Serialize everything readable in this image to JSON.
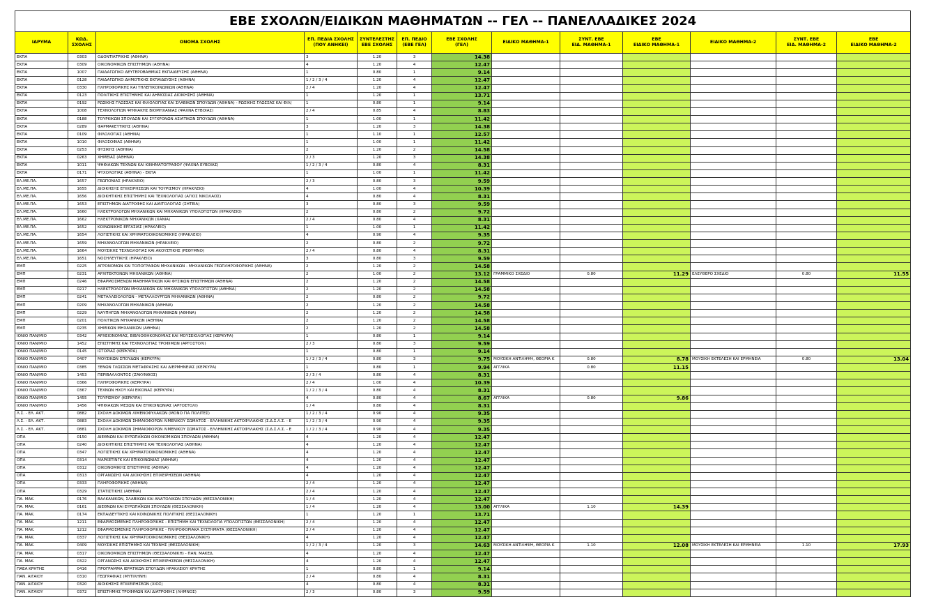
{
  "title": "ΕΒΕ ΣΧΟΛΩΝ/ΕΙΔΙΚΩΝ ΜΑΘΗΜΑΤΩΝ -- ΓΕΛ -- ΠΑΝΕΛΛΑΔΙΚΕΣ 2024",
  "table": {
    "columns": [
      "ΙΔΡΥΜΑ",
      "ΚΩΔ.\nΣΧΟΛΗΣ",
      "ΟΝΟΜΑ ΣΧΟΛΗΣ",
      "ΕΠ. ΠΕΔΙΑ ΣΧΟΛΗΣ\n(ΠΟΥ ΑΝΗΚΕΙ)",
      "ΣΥΝΤΕΛΕΣΤΗΣ\nΕΒΕ ΣΧΟΛΗΣ",
      "ΕΠ. ΠΕΔΙΟ\n(ΕΒΕ ΓΕΛ)",
      "ΕΒΕ ΣΧΟΛΗΣ\n(ΓΕΛ)",
      "ΕΙΔΙΚΟ ΜΑΘΗΜΑ-1",
      "ΣΥΝΤ. ΕΒΕ\nΕΙΔ. ΜΑΘΗΜΑ-1",
      "ΕΒΕ\nΕΙΔΙΚΟ ΜΑΘΗΜΑ-1",
      "ΕΙΔΙΚΟ ΜΑΘΗΜΑ-2",
      "ΣΥΝΤ. ΕΒΕ\nΕΙΔ. ΜΑΘΗΜΑ-2",
      "ΕΒΕ\nΕΙΔΙΚΟ ΜΑΘΗΜΑ-2"
    ],
    "rows": [
      [
        "ΕΚΠΑ",
        "0303",
        "ΟΔΟΝΤΙΑΤΡΙΚΗΣ (ΑΘΗΝΑ)",
        "3",
        "1.20",
        "3",
        "14.38",
        null,
        null,
        null,
        null,
        null,
        null
      ],
      [
        "ΕΚΠΑ",
        "0309",
        "ΟΙΚΟΝΟΜΙΚΩΝ ΕΠΙΣΤΗΜΩΝ (ΑΘΗΝΑ)",
        "4",
        "1.20",
        "4",
        "12.47",
        null,
        null,
        null,
        null,
        null,
        null
      ],
      [
        "ΕΚΠΑ",
        "1007",
        "ΠΑΙΔΑΓΩΓΙΚΟ ΔΕΥΤΕΡΟΒΑΘΜΙΑΣ ΕΚΠΑΙΔΕΥΣΗΣ (ΑΘΗΝΑ)",
        "1",
        "0.80",
        "1",
        "9.14",
        null,
        null,
        null,
        null,
        null,
        null
      ],
      [
        "ΕΚΠΑ",
        "0128",
        "ΠΑΙΔΑΓΩΓΙΚΟ ΔΗΜΟΤΙΚΗΣ ΕΚΠΑΙΔΕΥΣΗΣ (ΑΘΗΝΑ)",
        "1 / 2 / 3 / 4",
        "1.20",
        "4",
        "12.47",
        null,
        null,
        null,
        null,
        null,
        null
      ],
      [
        "ΕΚΠΑ",
        "0330",
        "ΠΛΗΡΟΦΟΡΙΚΗΣ ΚΑΙ ΤΗΛΕΠΙΚΟΙΝΩΝΙΩΝ (ΑΘΗΝΑ)",
        "2 / 4",
        "1.20",
        "4",
        "12.47",
        null,
        null,
        null,
        null,
        null,
        null
      ],
      [
        "ΕΚΠΑ",
        "0123",
        "ΠΟΛΙΤΙΚΗΣ ΕΠΙΣΤΗΜΗΣ ΚΑΙ ΔΗΜΟΣΙΑΣ ΔΙΟΙΚΗΣΗΣ (ΑΘΗΝΑ)",
        "1",
        "1.20",
        "1",
        "13.71",
        null,
        null,
        null,
        null,
        null,
        null
      ],
      [
        "ΕΚΠΑ",
        "0192",
        "ΡΩΣΙΚΗΣ ΓΛΩΣΣΑΣ ΚΑΙ ΦΙΛΟΛΟΓΙΑΣ ΚΑΙ ΣΛΑΒΙΚΩΝ ΣΠΟΥΔΩΝ (ΑΘΗΝΑ) - ΡΩΣΙΚΗΣ ΓΛΩΣΣΑΣ ΚΑΙ ΦΙΛ(",
        "1",
        "0.80",
        "1",
        "9.14",
        null,
        null,
        null,
        null,
        null,
        null
      ],
      [
        "ΕΚΠΑ",
        "1008",
        "ΤΕΧΝΟΛΟΓΙΩΝ ΨΗΦΙΑΚΗΣ ΒΙΟΜΗΧΑΝΙΑΣ (ΨΑΧΝΑ ΕΥΒΟΙΑΣ)",
        "2 / 4",
        "0.85",
        "4",
        "8.83",
        null,
        null,
        null,
        null,
        null,
        null
      ],
      [
        "ΕΚΠΑ",
        "0188",
        "ΤΟΥΡΚΙΚΩΝ ΣΠΟΥΔΩΝ ΚΑΙ ΣΥΓΧΡΟΝΩΝ ΑΣΙΑΤΙΚΩΝ ΣΠΟΥΔΩΝ (ΑΘΗΝΑ)",
        "1",
        "1.00",
        "1",
        "11.42",
        null,
        null,
        null,
        null,
        null,
        null
      ],
      [
        "ΕΚΠΑ",
        "0289",
        "ΦΑΡΜΑΚΕΥΤΙΚΗΣ (ΑΘΗΝΑ)",
        "3",
        "1.20",
        "3",
        "14.38",
        null,
        null,
        null,
        null,
        null,
        null
      ],
      [
        "ΕΚΠΑ",
        "0109",
        "ΦΙΛΟΛΟΓΙΑΣ (ΑΘΗΝΑ)",
        "1",
        "1.10",
        "1",
        "12.57",
        null,
        null,
        null,
        null,
        null,
        null
      ],
      [
        "ΕΚΠΑ",
        "1010",
        "ΦΙΛΟΣΟΦΙΑΣ (ΑΘΗΝΑ)",
        "1",
        "1.00",
        "1",
        "11.42",
        null,
        null,
        null,
        null,
        null,
        null
      ],
      [
        "ΕΚΠΑ",
        "0253",
        "ΦΥΣΙΚΗΣ (ΑΘΗΝΑ)",
        "2",
        "1.20",
        "2",
        "14.58",
        null,
        null,
        null,
        null,
        null,
        null
      ],
      [
        "ΕΚΠΑ",
        "0263",
        "ΧΗΜΕΙΑΣ (ΑΘΗΝΑ)",
        "2 / 3",
        "1.20",
        "3",
        "14.38",
        null,
        null,
        null,
        null,
        null,
        null
      ],
      [
        "ΕΚΠΑ",
        "1011",
        "ΨΗΦΙΑΚΩΝ ΤΕΧΝΩΝ ΚΑΙ ΚΙΝΗΜΑΤΟΓΡΑΦΟΥ (ΨΑΧΝΑ ΕΥΒΟΙΑΣ)",
        "1 / 2 / 3 / 4",
        "0.80",
        "4",
        "8.31",
        null,
        null,
        null,
        null,
        null,
        null
      ],
      [
        "ΕΚΠΑ",
        "0171",
        "ΨΥΧΟΛΟΓΙΑΣ (ΑΘΗΝΑ) - ΕΚΠΑ",
        "1",
        "1.00",
        "1",
        "11.42",
        null,
        null,
        null,
        null,
        null,
        null
      ],
      [
        "ΕΛ.ΜΕ.ΠΑ.",
        "1657",
        "ΓΕΩΠΟΝΙΑΣ (ΗΡΑΚΛΕΙΟ)",
        "2 / 3",
        "0.80",
        "3",
        "9.59",
        null,
        null,
        null,
        null,
        null,
        null
      ],
      [
        "ΕΛ.ΜΕ.ΠΑ.",
        "1655",
        "ΔΙΟΙΚΗΣΗΣ ΕΠΙΧΕΙΡΗΣΕΩΝ ΚΑΙ ΤΟΥΡΙΣΜΟΥ (ΗΡΑΚΛΕΙΟ)",
        "4",
        "1.00",
        "4",
        "10.39",
        null,
        null,
        null,
        null,
        null,
        null
      ],
      [
        "ΕΛ.ΜΕ.ΠΑ.",
        "1656",
        "ΔΙΟΙΚΗΤΙΚΗΣ ΕΠΙΣΤΗΜΗΣ ΚΑΙ ΤΕΧΝΟΛΟΓΙΑΣ (ΑΓΙΟΣ ΝΙΚΟΛΑΟΣ)",
        "4",
        "0.80",
        "4",
        "8.31",
        null,
        null,
        null,
        null,
        null,
        null
      ],
      [
        "ΕΛ.ΜΕ.ΠΑ.",
        "1653",
        "ΕΠΙΣΤΗΜΩΝ ΔΙΑΤΡΟΦΗΣ ΚΑΙ ΔΙΑΙΤΟΛΟΓΙΑΣ (ΣΗΤΕΙΑ)",
        "3",
        "0.80",
        "3",
        "9.59",
        null,
        null,
        null,
        null,
        null,
        null
      ],
      [
        "ΕΛ.ΜΕ.ΠΑ.",
        "1660",
        "ΗΛΕΚΤΡΟΛΟΓΩΝ ΜΗΧΑΝΙΚΩΝ ΚΑΙ ΜΗΧΑΝΙΚΩΝ ΥΠΟΛΟΓΙΣΤΩΝ (ΗΡΑΚΛΕΙΟ)",
        "2",
        "0.80",
        "2",
        "9.72",
        null,
        null,
        null,
        null,
        null,
        null
      ],
      [
        "ΕΛ.ΜΕ.ΠΑ.",
        "1662",
        "ΗΛΕΚΤΡΟΝΙΚΩΝ ΜΗΧΑΝΙΚΩΝ (ΧΑΝΙΑ)",
        "2 / 4",
        "0.80",
        "4",
        "8.31",
        null,
        null,
        null,
        null,
        null,
        null
      ],
      [
        "ΕΛ.ΜΕ.ΠΑ.",
        "1652",
        "ΚΟΙΝΩΝΙΚΗΣ ΕΡΓΑΣΙΑΣ (ΗΡΑΚΛΕΙΟ)",
        "1",
        "1.00",
        "1",
        "11.42",
        null,
        null,
        null,
        null,
        null,
        null
      ],
      [
        "ΕΛ.ΜΕ.ΠΑ.",
        "1654",
        "ΛΟΓΙΣΤΙΚΗΣ ΚΑΙ ΧΡΗΜΑΤΟΟΙΚΟΝΟΜΙΚΗΣ (ΗΡΑΚΛΕΙΟ)",
        "4",
        "0.90",
        "4",
        "9.35",
        null,
        null,
        null,
        null,
        null,
        null
      ],
      [
        "ΕΛ.ΜΕ.ΠΑ.",
        "1659",
        "ΜΗΧΑΝΟΛΟΓΩΝ ΜΗΧΑΝΙΚΩΝ (ΗΡΑΚΛΕΙΟ)",
        "2",
        "0.80",
        "2",
        "9.72",
        null,
        null,
        null,
        null,
        null,
        null
      ],
      [
        "ΕΛ.ΜΕ.ΠΑ.",
        "1664",
        "ΜΟΥΣΙΚΗΣ ΤΕΧΝΟΛΟΓΙΑΣ ΚΑΙ ΑΚΟΥΣΤΙΚΗΣ (ΡΕΘΥΜΝΟ)",
        "2 / 4",
        "0.80",
        "4",
        "8.31",
        null,
        null,
        null,
        null,
        null,
        null
      ],
      [
        "ΕΛ.ΜΕ.ΠΑ.",
        "1651",
        "ΝΟΣΗΛΕΥΤΙΚΗΣ (ΗΡΑΚΛΕΙΟ)",
        "3",
        "0.80",
        "3",
        "9.59",
        null,
        null,
        null,
        null,
        null,
        null
      ],
      [
        "ΕΜΠ",
        "0225",
        "ΑΓΡΟΝΟΜΩΝ ΚΑΙ ΤΟΠΟΓΡΑΦΩΝ ΜΗΧΑΝΙΚΩΝ - ΜΗΧΑΝΙΚΩΝ ΓΕΩΠΛΗΡΟΦΟΡΙΚΗΣ (ΑΘΗΝΑ)",
        "2",
        "1.20",
        "2",
        "14.58",
        null,
        null,
        null,
        null,
        null,
        null
      ],
      [
        "ΕΜΠ",
        "0231",
        "ΑΡΧΙΤΕΚΤΟΝΩΝ ΜΗΧΑΝΙΚΩΝ (ΑΘΗΝΑ)",
        "2",
        "1.00",
        "2",
        "13.12",
        "ΓΡΑΜΜΙΚΟ ΣΧΕΔΙΟ",
        "0.80",
        "11.29",
        "ΕΛΕΥΘΕΡΟ ΣΧΕΔΙΟ",
        "0.80",
        "11.55"
      ],
      [
        "ΕΜΠ",
        "0246",
        "ΕΦΑΡΜΟΣΜΕΝΩΝ ΜΑΘΗΜΑΤΙΚΩΝ ΚΑΙ ΦΥΣΙΚΩΝ ΕΠΙΣΤΗΜΩΝ (ΑΘΗΝΑ)",
        "2",
        "1.20",
        "2",
        "14.58",
        null,
        null,
        null,
        null,
        null,
        null
      ],
      [
        "ΕΜΠ",
        "0217",
        "ΗΛΕΚΤΡΟΛΟΓΩΝ ΜΗΧΑΝΙΚΩΝ ΚΑΙ ΜΗΧΑΝΙΚΩΝ ΥΠΟΛΟΓΙΣΤΩΝ (ΑΘΗΝΑ)",
        "2",
        "1.20",
        "2",
        "14.58",
        null,
        null,
        null,
        null,
        null,
        null
      ],
      [
        "ΕΜΠ",
        "0241",
        "ΜΕΤΑΛΛΕΙΟΛΟΓΩΝ - ΜΕΤΑΛΛΟΥΡΓΩΝ ΜΗΧΑΝΙΚΩΝ (ΑΘΗΝΑ)",
        "2",
        "0.80",
        "2",
        "9.72",
        null,
        null,
        null,
        null,
        null,
        null
      ],
      [
        "ΕΜΠ",
        "0209",
        "ΜΗΧΑΝΟΛΟΓΩΝ ΜΗΧΑΝΙΚΩΝ (ΑΘΗΝΑ)",
        "2",
        "1.20",
        "2",
        "14.58",
        null,
        null,
        null,
        null,
        null,
        null
      ],
      [
        "ΕΜΠ",
        "0229",
        "ΝΑΥΠΗΓΩΝ ΜΗΧΑΝΟΛΟΓΩΝ ΜΗΧΑΝΙΚΩΝ (ΑΘΗΝΑ)",
        "2",
        "1.20",
        "2",
        "14.58",
        null,
        null,
        null,
        null,
        null,
        null
      ],
      [
        "ΕΜΠ",
        "0201",
        "ΠΟΛΙΤΙΚΩΝ ΜΗΧΑΝΙΚΩΝ (ΑΘΗΝΑ)",
        "2",
        "1.20",
        "2",
        "14.58",
        null,
        null,
        null,
        null,
        null,
        null
      ],
      [
        "ΕΜΠ",
        "0235",
        "ΧΗΜΙΚΩΝ ΜΗΧΑΝΙΚΩΝ (ΑΘΗΝΑ)",
        "2",
        "1.20",
        "2",
        "14.58",
        null,
        null,
        null,
        null,
        null,
        null
      ],
      [
        "ΙΟΝΙΟ ΠΑΝ/ΜΙΟ",
        "0342",
        "ΑΡΧΕΙΟΝΟΜΙΑΣ, ΒΙΒΛΙΟΘΗΚΟΝΟΜΙΑΣ ΚΑΙ ΜΟΥΣΕΙΟΛΟΓΙΑΣ (ΚΕΡΚΥΡΑ)",
        "1",
        "0.80",
        "1",
        "9.14",
        null,
        null,
        null,
        null,
        null,
        null
      ],
      [
        "ΙΟΝΙΟ ΠΑΝ/ΜΙΟ",
        "1452",
        "ΕΠΙΣΤΗΜΗΣ ΚΑΙ ΤΕΧΝΟΛΟΓΙΑΣ ΤΡΟΦΙΜΩΝ (ΑΡΓΟΣΤΟΛΙ)",
        "2 / 3",
        "0.80",
        "3",
        "9.59",
        null,
        null,
        null,
        null,
        null,
        null
      ],
      [
        "ΙΟΝΙΟ ΠΑΝ/ΜΙΟ",
        "0145",
        "ΙΣΤΟΡΙΑΣ (ΚΕΡΚΥΡΑ)",
        "1",
        "0.80",
        "1",
        "9.14",
        null,
        null,
        null,
        null,
        null,
        null
      ],
      [
        "ΙΟΝΙΟ ΠΑΝ/ΜΙΟ",
        "0407",
        "ΜΟΥΣΙΚΩΝ ΣΠΟΥΔΩΝ (ΚΕΡΚΥΡΑ)",
        "1 / 2 / 3 / 4",
        "0.80",
        "3",
        "9.75",
        "ΜΟΥΣΙΚΗ ΑΝΤΙΛΗΨΗ, ΘΕΟΡΙΑ Κ",
        "0.80",
        "8.78",
        "ΜΟΥΣΙΚΗ ΕΚΤΕΛΕΣΗ ΚΑΙ ΕΡΜΗΝΕΙΑ",
        "0.80",
        "13.04"
      ],
      [
        "ΙΟΝΙΟ ΠΑΝ/ΜΙΟ",
        "0385",
        "ΞΕΝΩΝ ΓΛΩΣΣΩΝ ΜΕΤΑΦΡΑΣΗΣ ΚΑΙ ΔΙΕΡΜΗΝΕΙΑΣ (ΚΕΡΚΥΡΑ)",
        "1",
        "0.80",
        "1",
        "9.94",
        "ΑΓΓΛΙΚΑ",
        "0.80",
        "11.15",
        null,
        null,
        null
      ],
      [
        "ΙΟΝΙΟ ΠΑΝ/ΜΙΟ",
        "1453",
        "ΠΕΡΙΒΑΛΛΟΝΤΟΣ (ΖΑΚΥΝΘΟΣ)",
        "2 / 3 / 4",
        "0.80",
        "4",
        "8.31",
        null,
        null,
        null,
        null,
        null,
        null
      ],
      [
        "ΙΟΝΙΟ ΠΑΝ/ΜΙΟ",
        "0366",
        "ΠΛΗΡΟΦΟΡΙΚΗΣ (ΚΕΡΚΥΡΑ)",
        "2 / 4",
        "1.00",
        "4",
        "10.39",
        null,
        null,
        null,
        null,
        null,
        null
      ],
      [
        "ΙΟΝΙΟ ΠΑΝ/ΜΙΟ",
        "0367",
        "ΤΕΧΝΩΝ ΗΧΟΥ ΚΑΙ ΕΙΚΟΝΑΣ (ΚΕΡΚΥΡΑ)",
        "1 / 2 / 3 / 4",
        "0.80",
        "4",
        "8.31",
        null,
        null,
        null,
        null,
        null,
        null
      ],
      [
        "ΙΟΝΙΟ ΠΑΝ/ΜΙΟ",
        "1455",
        "ΤΟΥΡΙΣΜΟΥ (ΚΕΡΚΥΡΑ)",
        "4",
        "0.80",
        "4",
        "8.67",
        "ΑΓΓΛΙΚΑ",
        "0.80",
        "9.86",
        null,
        null,
        null
      ],
      [
        "ΙΟΝΙΟ ΠΑΝ/ΜΙΟ",
        "1456",
        "ΨΗΦΙΑΚΩΝ ΜΕΣΩΝ ΚΑΙ ΕΠΙΚΟΙΝΩΝΙΑΣ (ΑΡΓΟΣΤΟΛΙ)",
        "1 / 4",
        "0.80",
        "4",
        "8.31",
        null,
        null,
        null,
        null,
        null,
        null
      ],
      [
        "Λ.Σ. - ΕΛ. ΑΚΤ.",
        "0882",
        "ΣΧΟΛΗ ΔΟΚΙΜΩΝ ΛΙΜΕΝΟΦΥΛΑΚΩΝ (ΜΟΝΟ ΓΙΑ ΠΟΛΙΤΕΣ)",
        "1 / 2 / 3 / 4",
        "0.90",
        "4",
        "9.35",
        null,
        null,
        null,
        null,
        null,
        null
      ],
      [
        "Λ.Σ. - ΕΛ. ΑΚΤ.",
        "0883",
        "ΣΧΟΛΗ ΔΟΚΙΜΩΝ ΣΗΜΑΙΟΦΟΡΩΝ ΛΙΜΕΝΙΚΟΥ ΣΩΜΑΤΟΣ - ΕΛΛΗΝΙΚΗΣ ΑΚΤΟΦΥΛΑΚΗΣ (Σ.Δ.Σ.Λ.Σ. - Ε",
        "1 / 2 / 3 / 4",
        "0.90",
        "4",
        "9.35",
        null,
        null,
        null,
        null,
        null,
        null
      ],
      [
        "Λ.Σ. - ΕΛ. ΑΚΤ.",
        "0881",
        "ΣΧΟΛΗ ΔΟΚΙΜΩΝ ΣΗΜΑΙΟΦΟΡΩΝ ΛΙΜΕΝΙΚΟΥ ΣΩΜΑΤΟΣ - ΕΛΛΗΝΙΚΗΣ ΑΚΤΟΦΥΛΑΚΗΣ (Σ.Δ.Σ.Λ.Σ. - Ε",
        "1 / 2 / 3 / 4",
        "0.90",
        "4",
        "9.35",
        null,
        null,
        null,
        null,
        null,
        null
      ],
      [
        "ΟΠΑ",
        "0150",
        "ΔΙΕΘΝΩΝ ΚΑΙ ΕΥΡΩΠΑΪΚΩΝ ΟΙΚΟΝΟΜΙΚΩΝ ΣΠΟΥΔΩΝ (ΑΘΗΝΑ)",
        "4",
        "1.20",
        "4",
        "12.47",
        null,
        null,
        null,
        null,
        null,
        null
      ],
      [
        "ΟΠΑ",
        "0240",
        "ΔΙΟΙΚΗΤΙΚΗΣ ΕΠΙΣΤΗΜΗΣ ΚΑΙ ΤΕΧΝΟΛΟΓΙΑΣ (ΑΘΗΝΑ)",
        "4",
        "1.20",
        "4",
        "12.47",
        null,
        null,
        null,
        null,
        null,
        null
      ],
      [
        "ΟΠΑ",
        "0347",
        "ΛΟΓΙΣΤΙΚΗΣ ΚΑΙ ΧΡΗΜΑΤΟΟΙΚΟΝΟΜΙΚΗΣ (ΑΘΗΝΑ)",
        "4",
        "1.20",
        "4",
        "12.47",
        null,
        null,
        null,
        null,
        null,
        null
      ],
      [
        "ΟΠΑ",
        "0314",
        "ΜΑΡΚΕΤΙΝΓΚ ΚΑΙ ΕΠΙΚΟΙΝΩΝΙΑΣ (ΑΘΗΝΑ)",
        "4",
        "1.20",
        "4",
        "12.47",
        null,
        null,
        null,
        null,
        null,
        null
      ],
      [
        "ΟΠΑ",
        "0312",
        "ΟΙΚΟΝΟΜΙΚΗΣ ΕΠΙΣΤΗΜΗΣ (ΑΘΗΝΑ)",
        "4",
        "1.20",
        "4",
        "12.47",
        null,
        null,
        null,
        null,
        null,
        null
      ],
      [
        "ΟΠΑ",
        "0313",
        "ΟΡΓΑΝΩΣΗΣ ΚΑΙ ΔΙΟΙΚΗΣΗΣ ΕΠΙΧΕΙΡΗΣΕΩΝ (ΑΘΗΝΑ)",
        "4",
        "1.20",
        "4",
        "12.47",
        null,
        null,
        null,
        null,
        null,
        null
      ],
      [
        "ΟΠΑ",
        "0333",
        "ΠΛΗΡΟΦΟΡΙΚΗΣ (ΑΘΗΝΑ)",
        "2 / 4",
        "1.20",
        "4",
        "12.47",
        null,
        null,
        null,
        null,
        null,
        null
      ],
      [
        "ΟΠΑ",
        "0329",
        "ΣΤΑΤΙΣΤΙΚΗΣ (ΑΘΗΝΑ)",
        "2 / 4",
        "1.20",
        "4",
        "12.47",
        null,
        null,
        null,
        null,
        null,
        null
      ],
      [
        "ΠΑ. ΜΑΚ.",
        "0176",
        "ΒΑΛΚΑΝΙΚΩΝ, ΣΛΑΒΙΚΩΝ ΚΑΙ ΑΝΑΤΟΛΙΚΩΝ ΣΠΟΥΔΩΝ (ΘΕΣΣΑΛΟΝΙΚΗ)",
        "1 / 4",
        "1.20",
        "4",
        "12.47",
        null,
        null,
        null,
        null,
        null,
        null
      ],
      [
        "ΠΑ. ΜΑΚ.",
        "0161",
        "ΔΙΕΘΝΩΝ ΚΑΙ ΕΥΡΩΠΑΪΚΩΝ ΣΠΟΥΔΩΝ (ΘΕΣΣΑΛΟΝΙΚΗ)",
        "1 / 4",
        "1.20",
        "4",
        "13.00",
        "ΑΓΓΛΙΚΑ",
        "1.10",
        "14.39",
        null,
        null,
        null
      ],
      [
        "ΠΑ. ΜΑΚ.",
        "0174",
        "ΕΚΠΑΙΔΕΥΤΙΚΗΣ ΚΑΙ ΚΟΙΝΩΝΙΚΗΣ ΠΟΛΙΤΙΚΗΣ (ΘΕΣΣΑΛΟΝΙΚΗ)",
        "1",
        "1.20",
        "1",
        "13.71",
        null,
        null,
        null,
        null,
        null,
        null
      ],
      [
        "ΠΑ. ΜΑΚ.",
        "1211",
        "ΕΦΑΡΜΟΣΜΕΝΗΣ ΠΛΗΡΟΦΟΡΙΚΗΣ - ΕΠΙΣΤΗΜΗ ΚΑΙ ΤΕΧΝΟΛΟΓΙΑ ΥΠΟΛΟΓΙΣΤΩΝ (ΘΕΣΣΑΛΟΝΙΚΗ)",
        "2 / 4",
        "1.20",
        "4",
        "12.47",
        null,
        null,
        null,
        null,
        null,
        null
      ],
      [
        "ΠΑ. ΜΑΚ.",
        "1212",
        "ΕΦΑΡΜΟΣΜΕΝΗΣ ΠΛΗΡΟΦΟΡΙΚΗΣ - ΠΛΗΡΟΦΟΡΙΑΚΑ ΣΥΣΤΗΜΑΤΑ (ΘΕΣΣΑΛΟΝΙΚΗ)",
        "2 / 4",
        "1.20",
        "4",
        "12.47",
        null,
        null,
        null,
        null,
        null,
        null
      ],
      [
        "ΠΑ. ΜΑΚ.",
        "0337",
        "ΛΟΓΙΣΤΙΚΗΣ ΚΑΙ ΧΡΗΜΑΤΟΟΙΚΟΝΟΜΙΚΗΣ (ΘΕΣΣΑΛΟΝΙΚΗ)",
        "4",
        "1.20",
        "4",
        "12.47",
        null,
        null,
        null,
        null,
        null,
        null
      ],
      [
        "ΠΑ. ΜΑΚ.",
        "0409",
        "ΜΟΥΣΙΚΗΣ ΕΠΙΣΤΗΜΗΣ ΚΑΙ ΤΕΧΝΗΣ (ΘΕΣΣΑΛΟΝΙΚΗ)",
        "1 / 2 / 3 / 4",
        "1.20",
        "3",
        "14.63",
        "ΜΟΥΣΙΚΗ ΑΝΤΙΛΗΨΗ, ΘΕΟΡΙΑ Κ",
        "1.10",
        "12.08",
        "ΜΟΥΣΙΚΗ ΕΚΤΕΛΕΣΗ ΚΑΙ ΕΡΜΗΝΕΙΑ",
        "1.10",
        "17.93"
      ],
      [
        "ΠΑ. ΜΑΚ.",
        "0317",
        "ΟΙΚΟΝΟΜΙΚΩΝ ΕΠΙΣΤΗΜΩΝ (ΘΕΣΣΑΛΟΝΙΚΗ) - ΠΑΝ. ΜΑΚΕΔ.",
        "4",
        "1.20",
        "4",
        "12.47",
        null,
        null,
        null,
        null,
        null,
        null
      ],
      [
        "ΠΑ. ΜΑΚ.",
        "0322",
        "ΟΡΓΑΝΩΣΗΣ ΚΑΙ ΔΙΟΙΚΗΣΗΣ ΕΠΙΧΕΙΡΗΣΕΩΝ (ΘΕΣΣΑΛΟΝΙΚΗ)",
        "4",
        "1.20",
        "4",
        "12.47",
        null,
        null,
        null,
        null,
        null,
        null
      ],
      [
        "ΠΑΕΑ ΚΡΗΤΗΣ",
        "0416",
        "ΠΡΟΓΡΑΜΜΑ ΙΕΡΑΤΙΚΩΝ ΣΠΟΥΔΩΝ ΗΡΑΚΛΕΙΟΥ ΚΡΗΤΗΣ",
        "1",
        "0.80",
        "1",
        "9.14",
        null,
        null,
        null,
        null,
        null,
        null
      ],
      [
        "ΠΑΝ. ΑΙΓΑΙΟΥ",
        "0310",
        "ΓΕΩΓΡΑΦΙΑΣ (ΜΥΤΙΛΗΝΗ)",
        "2 / 4",
        "0.80",
        "4",
        "8.31",
        null,
        null,
        null,
        null,
        null,
        null
      ],
      [
        "ΠΑΝ. ΑΙΓΑΙΟΥ",
        "0320",
        "ΔΙΟΙΚΗΣΗΣ ΕΠΙΧΕΙΡΗΣΕΩΝ (ΧΙΟΣ)",
        "4",
        "0.80",
        "4",
        "8.31",
        null,
        null,
        null,
        null,
        null,
        null
      ],
      [
        "ΠΑΝ. ΑΙΓΑΙΟΥ",
        "0372",
        "ΕΠΙΣΤΗΜΗΣ ΤΡΟΦΙΜΩΝ ΚΑΙ ΔΙΑΤΡΟΦΗΣ (ΛΗΜΝΟΣ)",
        "2 / 3",
        "0.80",
        "3",
        "9.59",
        null,
        null,
        null,
        null,
        null,
        null
      ]
    ]
  }
}
